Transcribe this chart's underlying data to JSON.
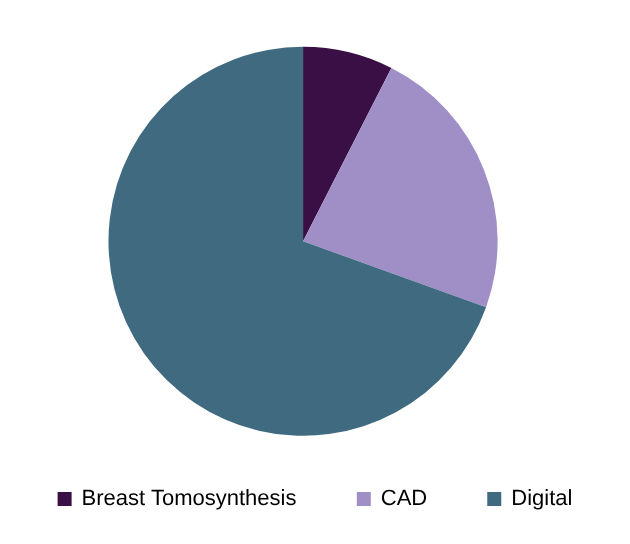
{
  "chart_data": {
    "type": "pie",
    "categories": [
      "Breast Tomosynthesis",
      "CAD",
      "Digital"
    ],
    "values": [
      7.5,
      23,
      69.5
    ],
    "colors": [
      "#3a0f45",
      "#a08fc6",
      "#3f6a80"
    ],
    "legend": "bottom"
  }
}
